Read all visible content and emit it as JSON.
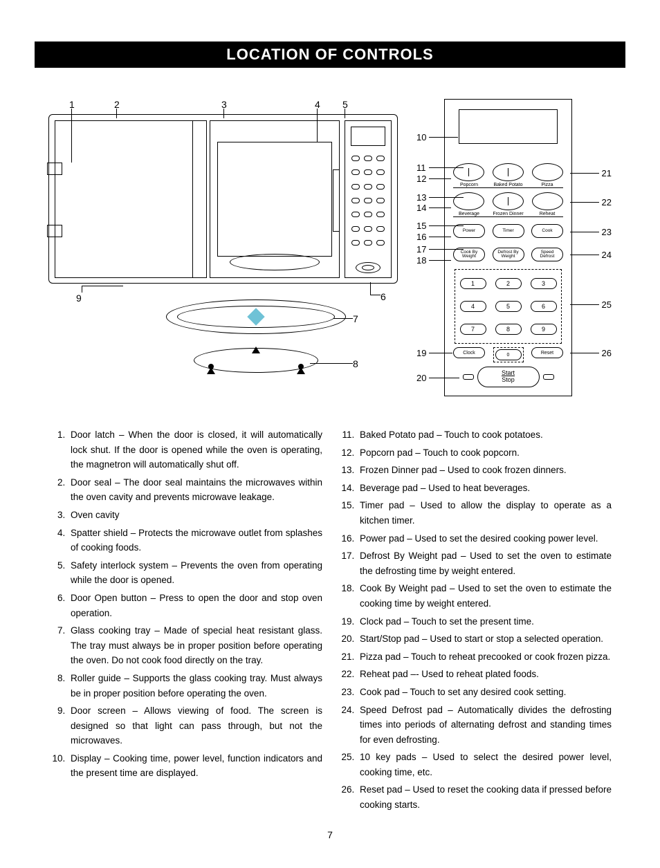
{
  "title": "LOCATION OF CONTROLS",
  "page_number": "7",
  "diagram": {
    "microwave_callouts": {
      "n1": "1",
      "n2": "2",
      "n3": "3",
      "n4": "4",
      "n5": "5",
      "n6": "6",
      "n7": "7",
      "n8": "8",
      "n9": "9"
    },
    "panel_callouts_left": {
      "n10": "10",
      "n11": "11",
      "n12": "12",
      "n13": "13",
      "n14": "14",
      "n15": "15",
      "n16": "16",
      "n17": "17",
      "n18": "18",
      "n19": "19",
      "n20": "20"
    },
    "panel_callouts_right": {
      "n21": "21",
      "n22": "22",
      "n23": "23",
      "n24": "24",
      "n25": "25",
      "n26": "26"
    },
    "panel_labels": {
      "row1": {
        "a": "Popcorn",
        "b": "Baked Potato",
        "c": "Pizza"
      },
      "row2": {
        "a": "Beverage",
        "b": "Frozen Dinner",
        "c": "Reheat"
      },
      "row3": {
        "a": "Power",
        "b": "Timer",
        "c": "Cook"
      },
      "row4": {
        "a": "Cook By\nWeight",
        "b": "Defrost By\nWeight",
        "c": "Speed\nDefrost"
      },
      "nums": [
        "1",
        "2",
        "3",
        "4",
        "5",
        "6",
        "7",
        "8",
        "9"
      ],
      "bottom": {
        "a": "Clock",
        "b": "0",
        "c": "Reset"
      },
      "start": "Start",
      "stop": "Stop"
    }
  },
  "left_list": [
    "Door latch – When the door is closed, it will automatically lock shut. If the door is opened while the oven is operating, the magnetron will automatically shut off.",
    "Door seal – The door seal maintains the microwaves within the oven cavity and prevents microwave leakage.",
    "Oven cavity",
    "Spatter shield – Protects the microwave outlet from splashes of cooking foods.",
    "Safety interlock system – Prevents the oven from operating while the door is opened.",
    "Door Open button – Press to open the door and stop oven operation.",
    "Glass cooking tray – Made of special heat resistant glass. The tray must always be in proper position before operating the oven. Do not cook food directly on the tray.",
    "Roller guide – Supports the glass cooking tray. Must always be in proper position before operating the oven.",
    "Door screen – Allows viewing of food. The screen is designed so that light can pass through, but not the microwaves.",
    "Display – Cooking time, power level, function indicators and the present time are displayed."
  ],
  "right_list": [
    "Baked Potato pad – Touch to cook potatoes.",
    "Popcorn pad – Touch to cook popcorn.",
    "Frozen Dinner pad – Used to cook frozen dinners.",
    "Beverage pad – Used to heat beverages.",
    "Timer pad – Used to allow the display to operate as a kitchen timer.",
    "Power pad – Used to set the desired cooking power level.",
    "Defrost By Weight pad – Used to set the oven to estimate the defrosting time by weight entered.",
    "Cook By Weight pad – Used to set the oven to estimate the cooking time by weight entered.",
    "Clock pad – Touch to set the present time.",
    "Start/Stop pad – Used to start or stop a selected operation.",
    "Pizza pad – Touch to reheat precooked or cook frozen pizza.",
    "Reheat pad –- Used to reheat plated foods.",
    "Cook pad – Touch to set any desired cook setting.",
    "Speed Defrost pad – Automatically divides the defrosting times into periods of alternating defrost and standing times for even defrosting.",
    "10 key pads – Used to select the desired power level, cooking time, etc.",
    "Reset pad – Used to reset the cooking data if pressed before cooking starts."
  ],
  "right_list_start": 11
}
